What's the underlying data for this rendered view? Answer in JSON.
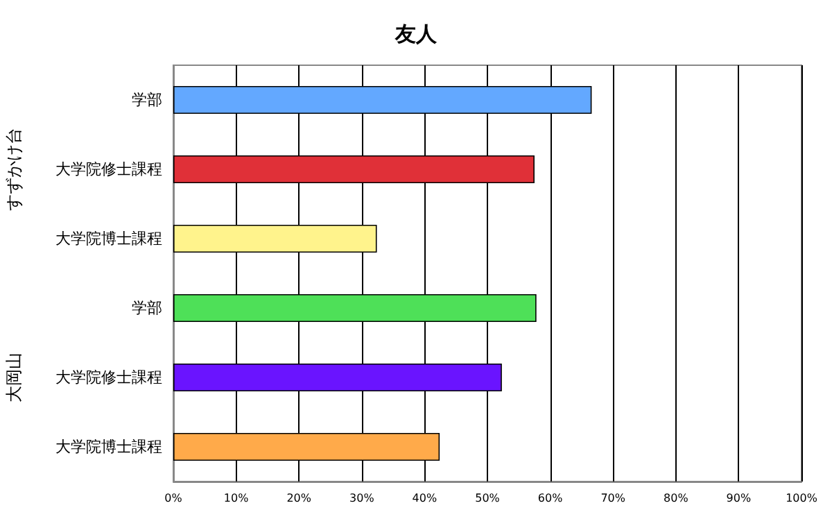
{
  "chart_data": {
    "type": "bar",
    "orientation": "horizontal",
    "title": "友人",
    "categories": [
      "学部",
      "大学院修士課程",
      "大学院博士課程",
      "学部",
      "大学院修士課程",
      "大学院博士課程"
    ],
    "values": [
      66.6,
      57.5,
      32.4,
      57.8,
      52.3,
      42.4
    ],
    "colors": [
      "#63a8ff",
      "#e03038",
      "#fff38c",
      "#4ee058",
      "#6a14ff",
      "#ffaa4a"
    ],
    "xlim": [
      0,
      100
    ],
    "xticks": [
      {
        "value": 0,
        "label": "0%"
      },
      {
        "value": 10,
        "label": "10%"
      },
      {
        "value": 20,
        "label": "20%"
      },
      {
        "value": 30,
        "label": "30%"
      },
      {
        "value": 40,
        "label": "40%"
      },
      {
        "value": 50,
        "label": "50%"
      },
      {
        "value": 60,
        "label": "60%"
      },
      {
        "value": 70,
        "label": "70%"
      },
      {
        "value": 80,
        "label": "80%"
      },
      {
        "value": 90,
        "label": "90%"
      },
      {
        "value": 100,
        "label": "100%"
      }
    ],
    "annotations": [
      "すずかけ台",
      "大岡山"
    ],
    "grid": "x"
  }
}
